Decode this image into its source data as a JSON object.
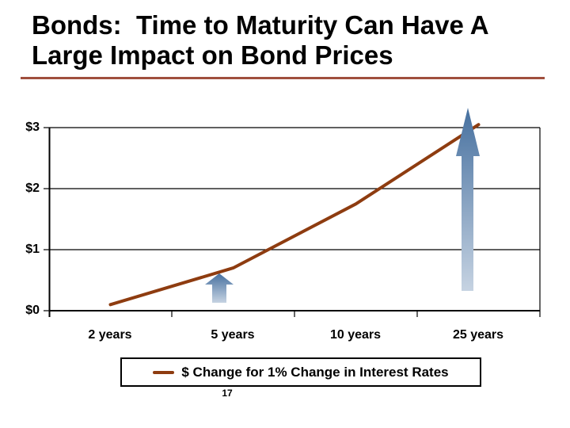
{
  "slide": {
    "title": {
      "line1": "Bonds:  Time to Maturity Can Have A",
      "line2": "Large Impact on Bond Prices"
    },
    "underline_color": "#a04f3d",
    "footer": {
      "page_number": "17"
    }
  },
  "legend": {
    "label": "$ Change for 1% Change in Interest Rates",
    "marker_color": "#8e3c10"
  },
  "chart_data": {
    "type": "line",
    "title": "",
    "categories": [
      "2 years",
      "5 years",
      "10 years",
      "25 years"
    ],
    "series": [
      {
        "name": "$ Change for 1% Change in Interest Rates",
        "values": [
          0.1,
          0.7,
          1.75,
          3.05
        ],
        "color": "#8e3c10"
      }
    ],
    "xlabel": "",
    "ylabel": "",
    "ytick_labels_top_to_bottom": [
      "$3",
      "$2",
      "$1",
      "$0"
    ],
    "ylim": [
      0,
      3
    ],
    "grid": "horizontal gridlines at each $1",
    "legend_position": "bottom",
    "annotations": [
      {
        "type": "up-arrow",
        "size": "small",
        "at_category": "5 years"
      },
      {
        "type": "up-arrow",
        "size": "large",
        "at_category": "25 years"
      }
    ],
    "arrow_gradient": {
      "top": "#46709f",
      "bottom": "#c6d3e2"
    }
  }
}
